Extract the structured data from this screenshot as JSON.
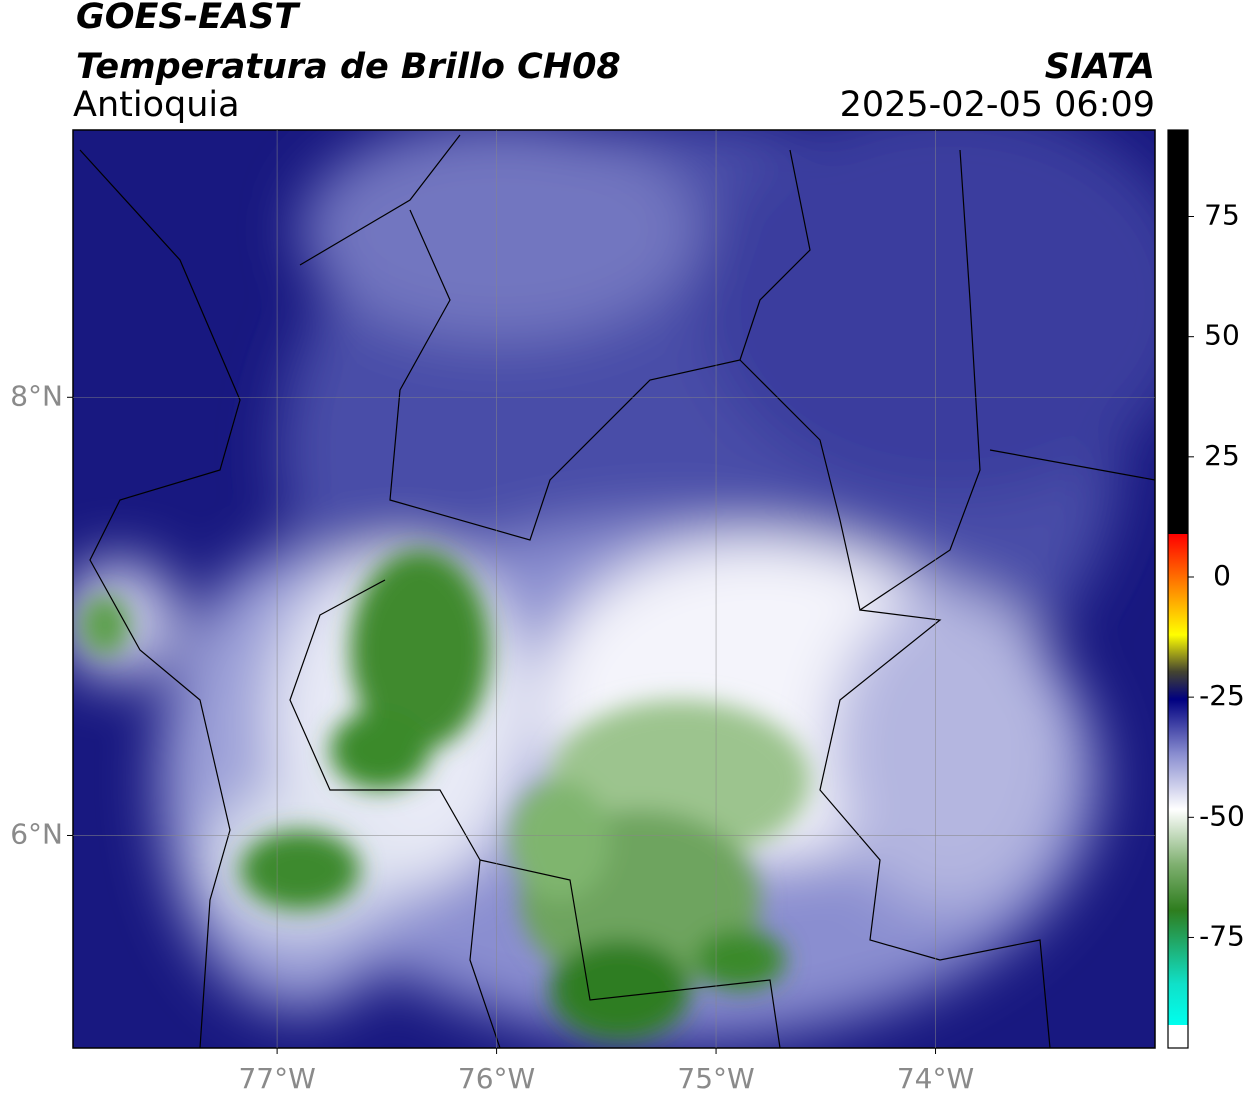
{
  "header": {
    "title": "GOES-EAST",
    "subtitle": "Temperatura de Brillo CH08",
    "region": "Antioquia",
    "source": "SIATA",
    "datetime": "2025-02-05 06:09"
  },
  "map": {
    "xlim": [
      -77.93,
      -73.0
    ],
    "ylim": [
      5.03,
      9.22
    ],
    "xticks": [
      {
        "value": -77,
        "label": "77°W"
      },
      {
        "value": -76,
        "label": "76°W"
      },
      {
        "value": -75,
        "label": "75°W"
      },
      {
        "value": -74,
        "label": "74°W"
      }
    ],
    "yticks": [
      {
        "value": 8,
        "label": "8°N"
      },
      {
        "value": 6,
        "label": "6°N"
      }
    ],
    "grid": true
  },
  "colorbar": {
    "lim": [
      -98,
      93
    ],
    "ticks": [
      75,
      50,
      25,
      0,
      -25,
      -50,
      -75
    ]
  }
}
